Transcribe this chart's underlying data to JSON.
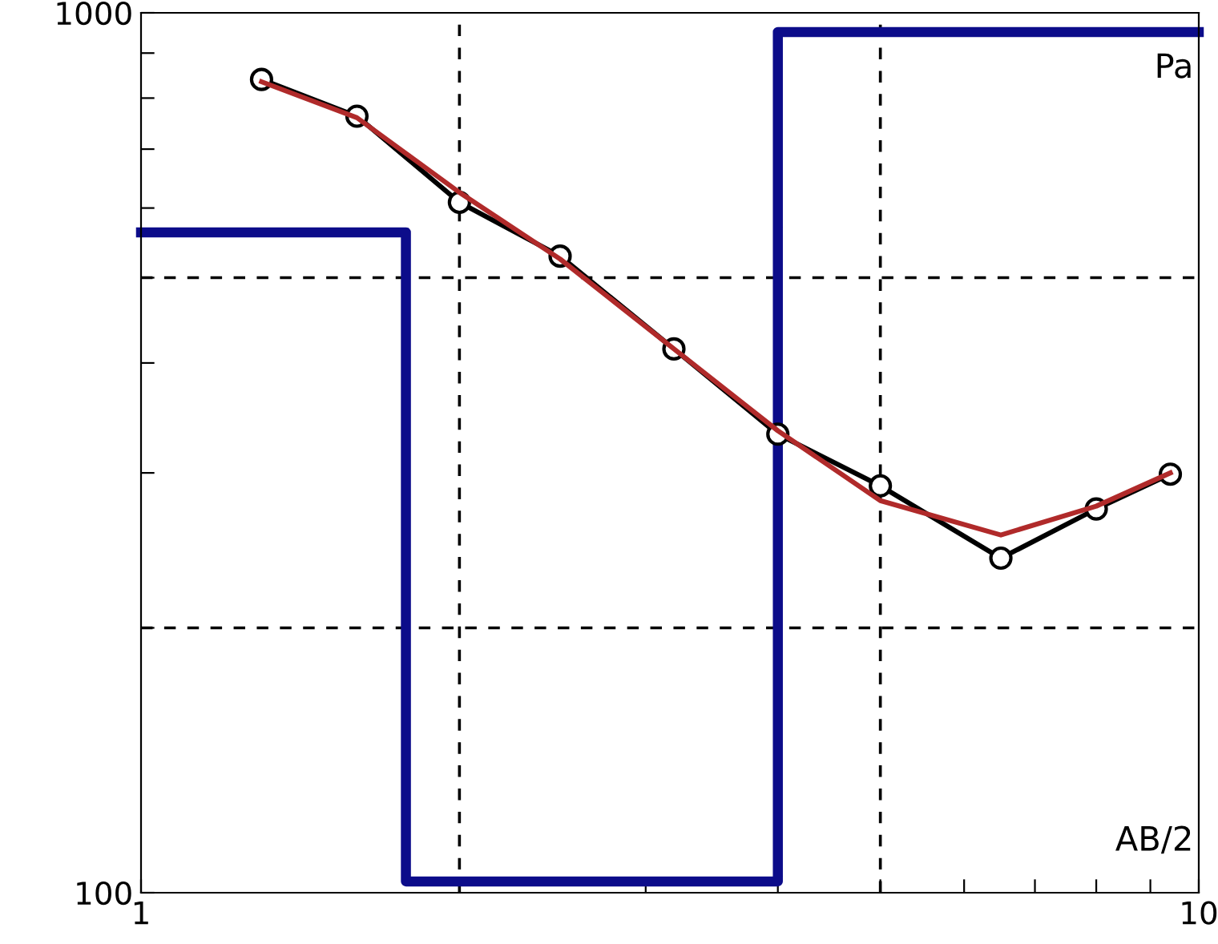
{
  "chart_data": {
    "type": "line",
    "xlabel": "AB/2",
    "ylabel": "Pa",
    "log": "xy",
    "xlim": [
      1,
      10
    ],
    "ylim": [
      100,
      1000
    ],
    "xticks": [
      1,
      {
        "value": 2,
        "label": null
      },
      {
        "value": 3,
        "label": null
      },
      {
        "value": 4,
        "label": null
      },
      {
        "value": 5,
        "label": null
      },
      {
        "value": 6,
        "label": null
      },
      {
        "value": 7,
        "label": null
      },
      {
        "value": 8,
        "label": null
      },
      {
        "value": 9,
        "label": null
      },
      10
    ],
    "yticks": [
      100,
      {
        "value": 200,
        "label": null
      },
      {
        "value": 300,
        "label": null
      },
      {
        "value": 400,
        "label": null
      },
      {
        "value": 500,
        "label": null
      },
      {
        "value": 600,
        "label": null
      },
      {
        "value": 700,
        "label": null
      },
      {
        "value": 800,
        "label": null
      },
      {
        "value": 900,
        "label": null
      },
      1000
    ],
    "grid": false,
    "ref_lines": [
      {
        "axis": "x",
        "value": 2,
        "color": "#000000",
        "line_style": "dashed"
      },
      {
        "axis": "x",
        "value": 5,
        "color": "#000000",
        "line_style": "dashed"
      },
      {
        "axis": "y",
        "value": 200,
        "color": "#000000",
        "line_style": "dashed"
      },
      {
        "axis": "y",
        "value": 500,
        "color": "#000000",
        "line_style": "dashed"
      }
    ],
    "series": [
      {
        "type": "step",
        "color": "#0c0c8a",
        "x": [
          1,
          1.78,
          4.0,
          10
        ],
        "values": [
          563,
          103,
          951,
          951
        ],
        "marker": "none"
      },
      {
        "color": "#000000",
        "marker": "circle",
        "x": [
          1.3,
          1.6,
          2.0,
          2.49,
          3.19,
          4.0,
          5.0,
          6.5,
          8.0,
          9.4
        ],
        "values": [
          840,
          763,
          609,
          529,
          415,
          332,
          290,
          240,
          273,
          299
        ]
      },
      {
        "color": "#b02a2a",
        "marker": "none",
        "x": [
          1.3,
          1.6,
          2.0,
          2.49,
          3.19,
          4.0,
          5.0,
          6.5,
          8.0,
          9.4
        ],
        "values": [
          835,
          760,
          625,
          525,
          415,
          335,
          279,
          255,
          275,
          300
        ]
      }
    ]
  }
}
